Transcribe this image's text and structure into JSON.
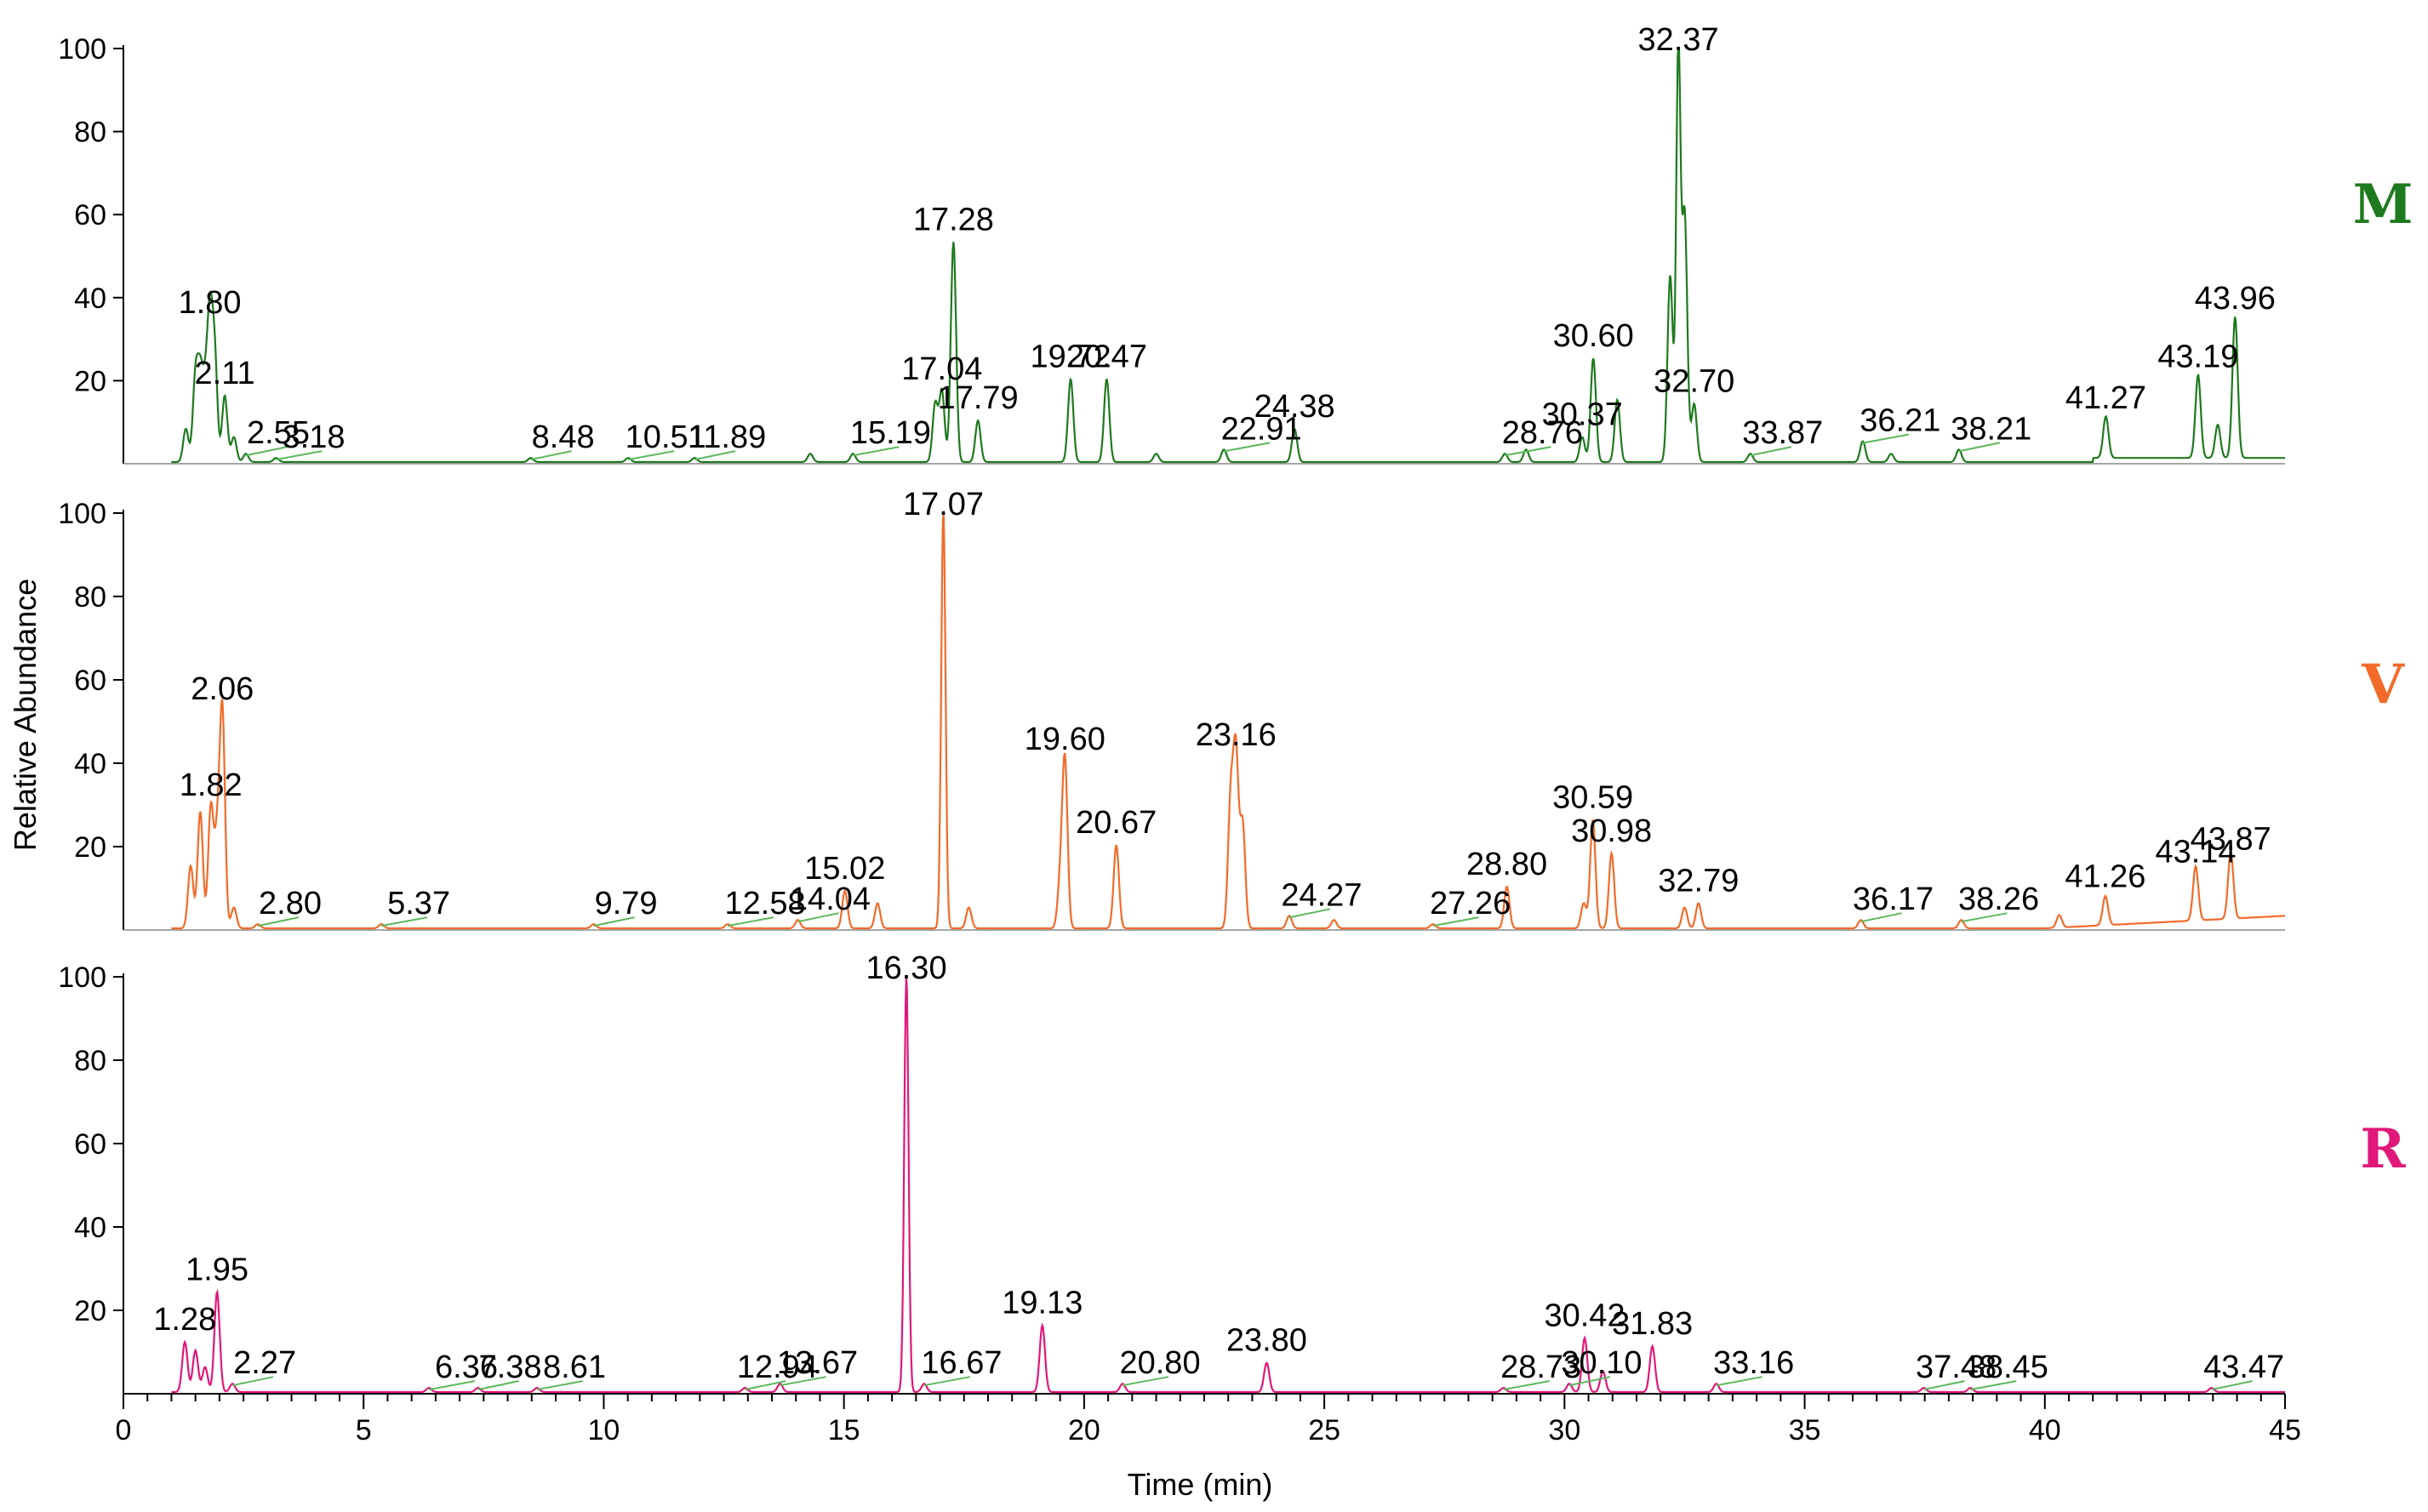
{
  "chart_data": {
    "type": "line",
    "xlabel": "Time (min)",
    "ylabel": "Relative Abundance",
    "xlim": [
      0,
      45
    ],
    "ylim": [
      0,
      100
    ],
    "x_ticks": [
      0,
      5,
      10,
      15,
      20,
      25,
      30,
      35,
      40,
      45
    ],
    "y_ticks": [
      20,
      40,
      60,
      80,
      100
    ],
    "grid": false,
    "label_leader_color": "#5cb85c",
    "panels": [
      {
        "letter": "M",
        "color": "#1e7a1e",
        "peaks": [
          {
            "t": 1.3,
            "h": 8
          },
          {
            "t": 1.5,
            "h": 20
          },
          {
            "t": 1.6,
            "h": 19
          },
          {
            "t": 1.7,
            "h": 15
          },
          {
            "t": 1.8,
            "h": 33
          },
          {
            "t": 1.9,
            "h": 25
          },
          {
            "t": 2.11,
            "h": 16
          },
          {
            "t": 2.3,
            "h": 6
          },
          {
            "t": 2.55,
            "h": 2
          },
          {
            "t": 3.18,
            "h": 1
          },
          {
            "t": 8.48,
            "h": 1
          },
          {
            "t": 10.51,
            "h": 1
          },
          {
            "t": 11.89,
            "h": 1
          },
          {
            "t": 14.3,
            "h": 2
          },
          {
            "t": 15.19,
            "h": 2
          },
          {
            "t": 16.9,
            "h": 14
          },
          {
            "t": 17.04,
            "h": 17
          },
          {
            "t": 17.28,
            "h": 53
          },
          {
            "t": 17.79,
            "h": 10
          },
          {
            "t": 19.72,
            "h": 20
          },
          {
            "t": 20.47,
            "h": 20
          },
          {
            "t": 21.5,
            "h": 2
          },
          {
            "t": 22.91,
            "h": 3
          },
          {
            "t": 24.38,
            "h": 8
          },
          {
            "t": 28.76,
            "h": 2
          },
          {
            "t": 29.2,
            "h": 3
          },
          {
            "t": 30.37,
            "h": 6
          },
          {
            "t": 30.6,
            "h": 25
          },
          {
            "t": 31.1,
            "h": 15
          },
          {
            "t": 32.2,
            "h": 45
          },
          {
            "t": 32.37,
            "h": 99
          },
          {
            "t": 32.5,
            "h": 60
          },
          {
            "t": 32.7,
            "h": 14
          },
          {
            "t": 33.87,
            "h": 2
          },
          {
            "t": 36.21,
            "h": 5
          },
          {
            "t": 36.8,
            "h": 2
          },
          {
            "t": 38.21,
            "h": 3
          },
          {
            "t": 41.27,
            "h": 10
          },
          {
            "t": 43.19,
            "h": 20
          },
          {
            "t": 43.6,
            "h": 8
          },
          {
            "t": 43.96,
            "h": 34
          }
        ],
        "labels": [
          {
            "text": "1.80",
            "t": 1.8
          },
          {
            "text": "2.11",
            "t": 2.11
          },
          {
            "text": "2.55",
            "t": 2.55
          },
          {
            "text": "3.18",
            "t": 3.18
          },
          {
            "text": "8.48",
            "t": 8.48
          },
          {
            "text": "10.51",
            "t": 10.51
          },
          {
            "text": "11.89",
            "t": 11.89
          },
          {
            "text": "15.19",
            "t": 15.19
          },
          {
            "text": "17.04",
            "t": 17.04
          },
          {
            "text": "17.28",
            "t": 17.28
          },
          {
            "text": "17.79",
            "t": 17.79
          },
          {
            "text": "19.72",
            "t": 19.72
          },
          {
            "text": "20.47",
            "t": 20.47
          },
          {
            "text": "22.91",
            "t": 22.91
          },
          {
            "text": "24.38",
            "t": 24.38
          },
          {
            "text": "28.76",
            "t": 28.76
          },
          {
            "text": "30.37",
            "t": 30.37
          },
          {
            "text": "30.60",
            "t": 30.6
          },
          {
            "text": "32.37",
            "t": 32.37
          },
          {
            "text": "32.70",
            "t": 32.7
          },
          {
            "text": "33.87",
            "t": 33.87
          },
          {
            "text": "36.21",
            "t": 36.21
          },
          {
            "text": "38.21",
            "t": 38.21
          },
          {
            "text": "41.27",
            "t": 41.27
          },
          {
            "text": "43.19",
            "t": 43.19
          },
          {
            "text": "43.96",
            "t": 43.96
          }
        ]
      },
      {
        "letter": "V",
        "color": "#f26b2a",
        "peaks": [
          {
            "t": 1.4,
            "h": 15
          },
          {
            "t": 1.6,
            "h": 28
          },
          {
            "t": 1.82,
            "h": 29
          },
          {
            "t": 1.95,
            "h": 20
          },
          {
            "t": 2.06,
            "h": 52
          },
          {
            "t": 2.3,
            "h": 5
          },
          {
            "t": 2.8,
            "h": 1
          },
          {
            "t": 5.37,
            "h": 1
          },
          {
            "t": 9.79,
            "h": 1
          },
          {
            "t": 12.58,
            "h": 1
          },
          {
            "t": 14.04,
            "h": 2
          },
          {
            "t": 15.02,
            "h": 9
          },
          {
            "t": 15.7,
            "h": 6
          },
          {
            "t": 17.07,
            "h": 100
          },
          {
            "t": 17.6,
            "h": 5
          },
          {
            "t": 19.5,
            "h": 10
          },
          {
            "t": 19.6,
            "h": 40
          },
          {
            "t": 20.67,
            "h": 20
          },
          {
            "t": 23.05,
            "h": 30
          },
          {
            "t": 23.16,
            "h": 41
          },
          {
            "t": 23.3,
            "h": 25
          },
          {
            "t": 24.27,
            "h": 3
          },
          {
            "t": 25.2,
            "h": 2
          },
          {
            "t": 27.26,
            "h": 1
          },
          {
            "t": 28.8,
            "h": 10
          },
          {
            "t": 30.4,
            "h": 6
          },
          {
            "t": 30.59,
            "h": 26
          },
          {
            "t": 30.98,
            "h": 18
          },
          {
            "t": 32.5,
            "h": 5
          },
          {
            "t": 32.79,
            "h": 6
          },
          {
            "t": 36.17,
            "h": 2
          },
          {
            "t": 38.26,
            "h": 2
          },
          {
            "t": 40.3,
            "h": 3
          },
          {
            "t": 41.26,
            "h": 7
          },
          {
            "t": 43.14,
            "h": 13
          },
          {
            "t": 43.87,
            "h": 16
          }
        ],
        "labels": [
          {
            "text": "1.82",
            "t": 1.82
          },
          {
            "text": "2.06",
            "t": 2.06
          },
          {
            "text": "2.80",
            "t": 2.8
          },
          {
            "text": "5.37",
            "t": 5.37
          },
          {
            "text": "9.79",
            "t": 9.79
          },
          {
            "text": "12.58",
            "t": 12.58
          },
          {
            "text": "14.04",
            "t": 14.04
          },
          {
            "text": "15.02",
            "t": 15.02
          },
          {
            "text": "17.07",
            "t": 17.07
          },
          {
            "text": "19.60",
            "t": 19.6
          },
          {
            "text": "20.67",
            "t": 20.67
          },
          {
            "text": "23.16",
            "t": 23.16
          },
          {
            "text": "24.27",
            "t": 24.27
          },
          {
            "text": "27.26",
            "t": 27.26
          },
          {
            "text": "28.80",
            "t": 28.8
          },
          {
            "text": "30.59",
            "t": 30.59
          },
          {
            "text": "30.98",
            "t": 30.98
          },
          {
            "text": "32.79",
            "t": 32.79
          },
          {
            "text": "36.17",
            "t": 36.17
          },
          {
            "text": "38.26",
            "t": 38.26
          },
          {
            "text": "41.26",
            "t": 41.26
          },
          {
            "text": "43.14",
            "t": 43.14
          },
          {
            "text": "43.87",
            "t": 43.87
          }
        ]
      },
      {
        "letter": "R",
        "color": "#e0187a",
        "peaks": [
          {
            "t": 1.28,
            "h": 12
          },
          {
            "t": 1.5,
            "h": 10
          },
          {
            "t": 1.7,
            "h": 6
          },
          {
            "t": 1.95,
            "h": 24
          },
          {
            "t": 2.27,
            "h": 2
          },
          {
            "t": 6.36,
            "h": 1
          },
          {
            "t": 7.38,
            "h": 1
          },
          {
            "t": 8.61,
            "h": 1
          },
          {
            "t": 12.94,
            "h": 1
          },
          {
            "t": 13.67,
            "h": 2
          },
          {
            "t": 16.3,
            "h": 100
          },
          {
            "t": 16.67,
            "h": 2
          },
          {
            "t": 19.13,
            "h": 16
          },
          {
            "t": 20.8,
            "h": 2
          },
          {
            "t": 23.8,
            "h": 7
          },
          {
            "t": 28.73,
            "h": 1
          },
          {
            "t": 30.1,
            "h": 2
          },
          {
            "t": 30.42,
            "h": 13
          },
          {
            "t": 30.8,
            "h": 5
          },
          {
            "t": 31.83,
            "h": 11
          },
          {
            "t": 33.16,
            "h": 2
          },
          {
            "t": 37.48,
            "h": 1
          },
          {
            "t": 38.45,
            "h": 1
          },
          {
            "t": 43.47,
            "h": 1
          }
        ],
        "labels": [
          {
            "text": "1.28",
            "t": 1.28
          },
          {
            "text": "1.95",
            "t": 1.95
          },
          {
            "text": "2.27",
            "t": 2.27
          },
          {
            "text": "6.36",
            "t": 6.36
          },
          {
            "text": "7.38",
            "t": 7.38
          },
          {
            "text": "8.61",
            "t": 8.61
          },
          {
            "text": "12.94",
            "t": 12.94
          },
          {
            "text": "13.67",
            "t": 13.67
          },
          {
            "text": "16.30",
            "t": 16.3
          },
          {
            "text": "16.67",
            "t": 16.67
          },
          {
            "text": "19.13",
            "t": 19.13
          },
          {
            "text": "20.80",
            "t": 20.8
          },
          {
            "text": "23.80",
            "t": 23.8
          },
          {
            "text": "28.73",
            "t": 28.73
          },
          {
            "text": "30.10",
            "t": 30.1
          },
          {
            "text": "30.42",
            "t": 30.42
          },
          {
            "text": "31.83",
            "t": 31.83
          },
          {
            "text": "33.16",
            "t": 33.16
          },
          {
            "text": "37.48",
            "t": 37.48
          },
          {
            "text": "38.45",
            "t": 38.45
          },
          {
            "text": "43.47",
            "t": 43.47
          }
        ]
      }
    ]
  }
}
